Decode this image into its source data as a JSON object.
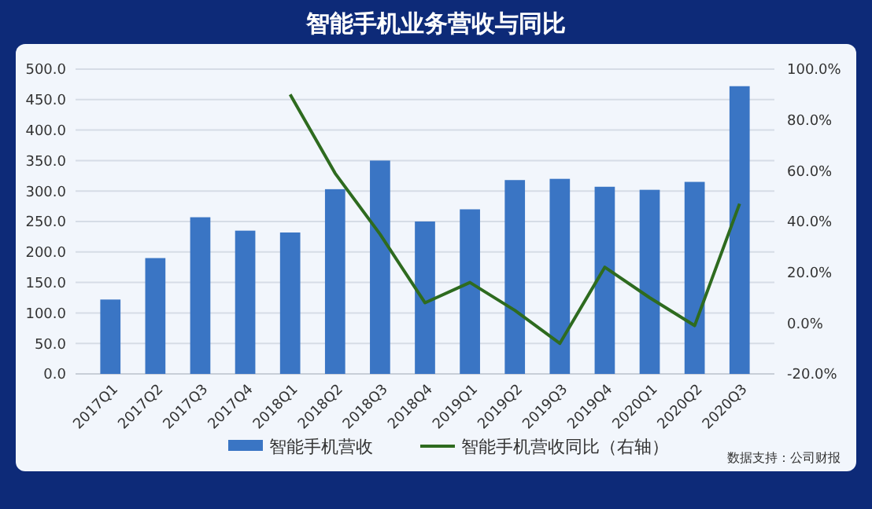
{
  "chart_data": {
    "type": "bar",
    "title": "智能手机业务营收与同比",
    "categories": [
      "2017Q1",
      "2017Q2",
      "2017Q3",
      "2017Q4",
      "2018Q1",
      "2018Q2",
      "2018Q3",
      "2018Q4",
      "2019Q1",
      "2019Q2",
      "2019Q3",
      "2019Q4",
      "2020Q1",
      "2020Q2",
      "2020Q3"
    ],
    "series": [
      {
        "name": "智能手机营收",
        "color": "#3a75c4",
        "values": [
          122,
          190,
          257,
          235,
          232,
          303,
          350,
          250,
          270,
          318,
          320,
          307,
          302,
          315,
          472
        ]
      },
      {
        "name": "智能手机营收同比（右轴）",
        "type": "line",
        "axis": "y2",
        "color": "#2e6b1f",
        "values": [
          null,
          null,
          null,
          null,
          90,
          59,
          35,
          8,
          16,
          5,
          -8,
          22,
          10,
          -1,
          47
        ]
      }
    ],
    "ylim": [
      0,
      500
    ],
    "yticks": [
      {
        "value": 0,
        "label": "0.0"
      },
      {
        "value": 50,
        "label": "50.0"
      },
      {
        "value": 100,
        "label": "100.0"
      },
      {
        "value": 150,
        "label": "150.0"
      },
      {
        "value": 200,
        "label": "200.0"
      },
      {
        "value": 250,
        "label": "250.0"
      },
      {
        "value": 300,
        "label": "300.0"
      },
      {
        "value": 350,
        "label": "350.0"
      },
      {
        "value": 400,
        "label": "400.0"
      },
      {
        "value": 450,
        "label": "450.0"
      },
      {
        "value": 500,
        "label": "500.0"
      }
    ],
    "y2lim": [
      -20,
      100
    ],
    "y2ticks": [
      {
        "value": -20,
        "label": "-20.0%"
      },
      {
        "value": 0,
        "label": "0.0%"
      },
      {
        "value": 20,
        "label": "20.0%"
      },
      {
        "value": 40,
        "label": "40.0%"
      },
      {
        "value": 60,
        "label": "60.0%"
      },
      {
        "value": 80,
        "label": "80.0%"
      },
      {
        "value": 100,
        "label": "100.0%"
      }
    ],
    "grid": "y",
    "legend": "bottom",
    "marker": "none",
    "line_style": "solid",
    "annotations": [
      "数据支持：公司财报"
    ]
  }
}
